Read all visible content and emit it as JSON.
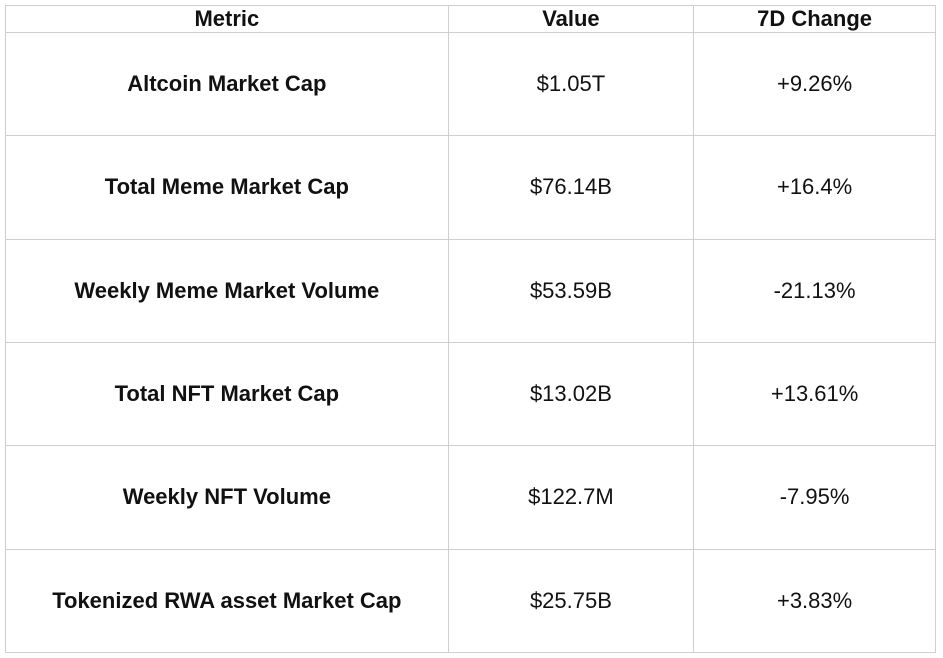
{
  "chart_data": {
    "type": "table",
    "columns": [
      "Metric",
      "Value",
      "7D Change"
    ],
    "rows": [
      [
        "Altcoin Market Cap",
        "$1.05T",
        "+9.26%"
      ],
      [
        "Total Meme Market Cap",
        "$76.14B",
        "+16.4%"
      ],
      [
        "Weekly Meme Market Volume",
        "$53.59B",
        "-21.13%"
      ],
      [
        "Total NFT Market Cap",
        "$13.02B",
        "+13.61%"
      ],
      [
        "Weekly NFT Volume",
        "$122.7M",
        "-7.95%"
      ],
      [
        "Tokenized RWA asset Market Cap",
        "$25.75B",
        "+3.83%"
      ]
    ]
  },
  "colors": {
    "border": "#cfcfcf",
    "text": "#111111",
    "background": "#ffffff"
  }
}
